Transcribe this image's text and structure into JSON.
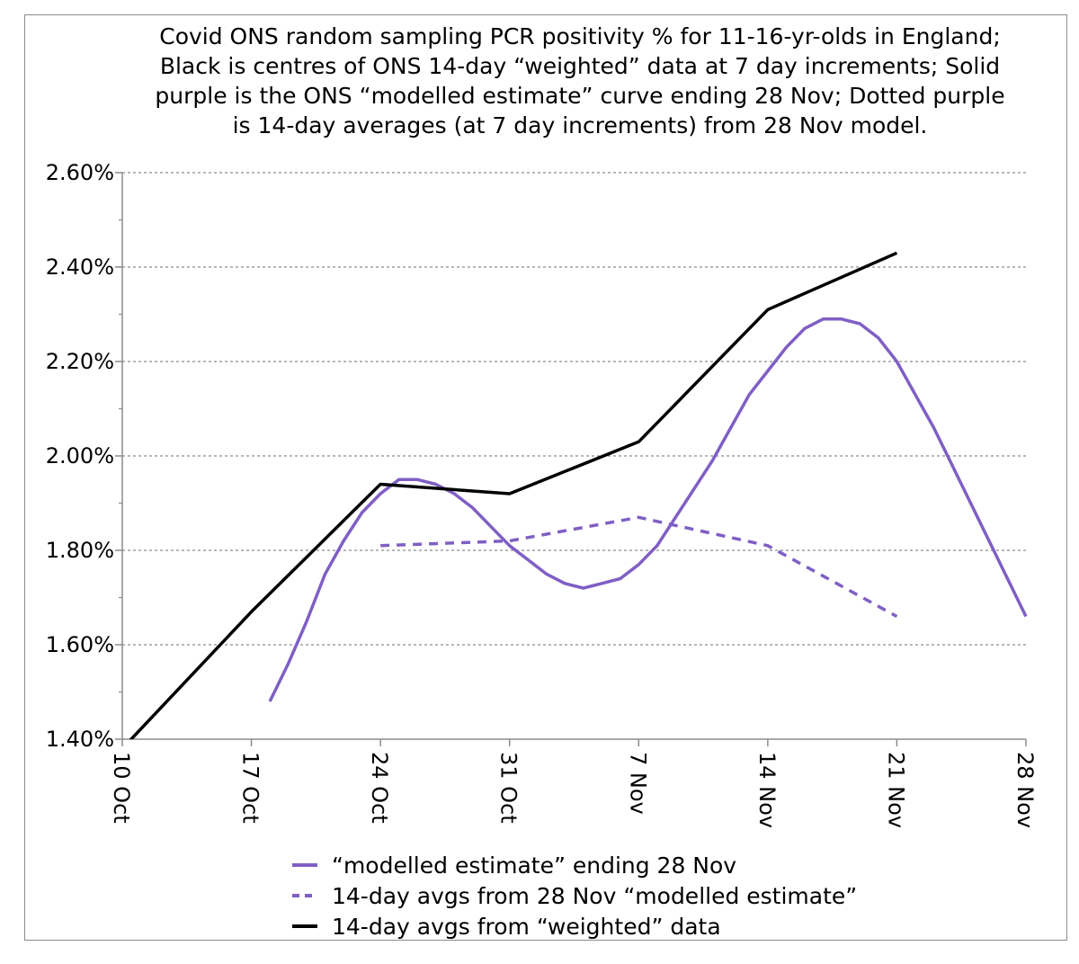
{
  "chart_data": {
    "type": "line",
    "title_lines": [
      "Covid ONS random sampling PCR positivity % for 11-16-yr-olds in England;",
      "Black is centres of ONS 14-day “weighted” data at 7 day increments; Solid",
      "purple is the ONS “modelled estimate” curve ending 28 Nov; Dotted purple",
      "is 14-day averages (at 7 day increments) from 28 Nov model."
    ],
    "xlabel": "",
    "ylabel": "",
    "x_ticks": [
      "10 Oct",
      "17 Oct",
      "24 Oct",
      "31 Oct",
      "7 Nov",
      "14 Nov",
      "21 Nov",
      "28 Nov"
    ],
    "x_tick_days": [
      0,
      7,
      14,
      21,
      28,
      35,
      42,
      49
    ],
    "y_ticks": [
      "1.40%",
      "1.60%",
      "1.80%",
      "2.00%",
      "2.20%",
      "2.40%",
      "2.60%"
    ],
    "ylim": [
      1.4,
      2.6
    ],
    "grid": "horizontal dotted",
    "legend_position": "bottom",
    "series": [
      {
        "name": "“modelled estimate” ending 28 Nov",
        "color": "#7f5fc4",
        "style": "solid",
        "x": [
          8,
          9,
          10,
          11,
          12,
          13,
          14,
          15,
          16,
          17,
          18,
          19,
          20,
          21,
          22,
          23,
          24,
          25,
          26,
          27,
          28,
          29,
          30,
          31,
          32,
          33,
          34,
          35,
          36,
          37,
          38,
          39,
          40,
          41,
          42,
          43,
          44,
          45,
          46,
          47,
          48,
          49
        ],
        "values": [
          1.48,
          1.56,
          1.65,
          1.75,
          1.82,
          1.88,
          1.92,
          1.95,
          1.95,
          1.94,
          1.92,
          1.89,
          1.85,
          1.81,
          1.78,
          1.75,
          1.73,
          1.72,
          1.73,
          1.74,
          1.77,
          1.81,
          1.87,
          1.93,
          1.99,
          2.06,
          2.13,
          2.18,
          2.23,
          2.27,
          2.29,
          2.29,
          2.28,
          2.25,
          2.2,
          2.13,
          2.06,
          1.98,
          1.9,
          1.82,
          1.74,
          1.66
        ]
      },
      {
        "name": "14-day avgs from 28 Nov “modelled estimate”",
        "color": "#7f5fc4",
        "style": "dashed",
        "x": [
          14,
          21,
          28,
          35,
          42
        ],
        "values": [
          1.81,
          1.82,
          1.87,
          1.81,
          1.66
        ]
      },
      {
        "name": "14-day avgs from “weighted” data",
        "color": "#000000",
        "style": "solid",
        "x": [
          0,
          7,
          14,
          21,
          28,
          35,
          42
        ],
        "values": [
          1.38,
          1.67,
          1.94,
          1.92,
          2.03,
          2.31,
          2.43
        ]
      }
    ]
  }
}
